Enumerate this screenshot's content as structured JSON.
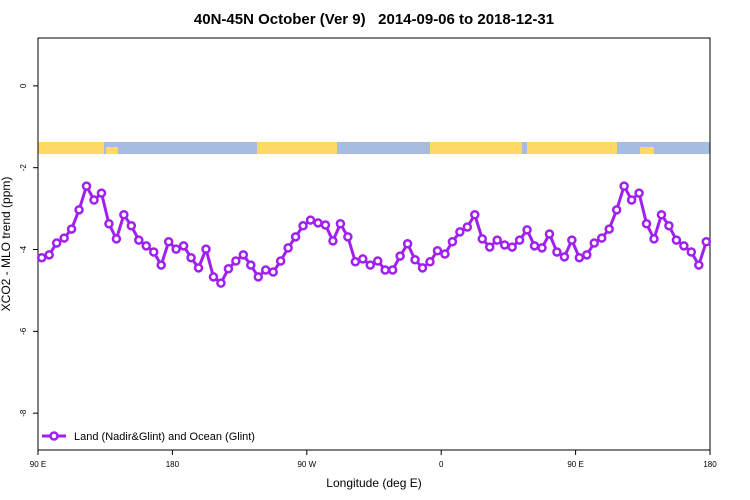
{
  "chart_data": {
    "type": "line",
    "title": "40N-45N October (Ver 9)   2014-09-06 to 2018-12-31",
    "x_label": "Longitude (deg E)",
    "y_label": "XCO2 - MLO trend (ppm)",
    "x": [
      92.5,
      97.5,
      102.5,
      107.5,
      112.5,
      117.5,
      122.5,
      127.5,
      132.5,
      137.5,
      142.5,
      147.5,
      152.5,
      157.5,
      162.5,
      167.5,
      172.5,
      177.5,
      182.5,
      187.5,
      192.5,
      197.5,
      202.5,
      207.5,
      212.5,
      217.5,
      222.5,
      227.5,
      232.5,
      237.5,
      242.5,
      247.5,
      252.5,
      257.5,
      262.5,
      267.5,
      272.5,
      277.5,
      282.5,
      287.5,
      292.5,
      297.5,
      302.5,
      307.5,
      312.5,
      317.5,
      322.5,
      327.5,
      332.5,
      337.5,
      342.5,
      347.5,
      352.5,
      357.5,
      362.5,
      367.5,
      372.5,
      377.5,
      382.5,
      387.5,
      392.5,
      397.5,
      402.5,
      407.5,
      412.5,
      417.5,
      422.5,
      427.5,
      432.5,
      437.5,
      442.5,
      447.5,
      452.5,
      457.5,
      462.5,
      467.5,
      472.5,
      477.5,
      482.5,
      487.5,
      492.5,
      497.5,
      502.5,
      507.5,
      512.5,
      517.5,
      522.5,
      527.5,
      532.5,
      537.5
    ],
    "series": [
      {
        "name": "Land (Nadir&Glint) and Ocean (Glint)",
        "color": "#a020f0",
        "values": [
          -4.2,
          -4.13,
          -3.84,
          -3.72,
          -3.5,
          -3.03,
          -2.45,
          -2.79,
          -2.62,
          -3.37,
          -3.74,
          -3.15,
          -3.42,
          -3.77,
          -3.91,
          -4.06,
          -4.38,
          -3.81,
          -3.99,
          -3.91,
          -4.2,
          -4.45,
          -3.99,
          -4.67,
          -4.82,
          -4.47,
          -4.28,
          -4.13,
          -4.38,
          -4.67,
          -4.5,
          -4.55,
          -4.28,
          -3.96,
          -3.69,
          -3.42,
          -3.28,
          -3.35,
          -3.4,
          -3.79,
          -3.37,
          -3.69,
          -4.3,
          -4.23,
          -4.38,
          -4.28,
          -4.5,
          -4.5,
          -4.16,
          -3.86,
          -4.25,
          -4.45,
          -4.3,
          -4.03,
          -4.11,
          -3.81,
          -3.57,
          -3.45,
          -3.15,
          -3.74,
          -3.94,
          -3.77,
          -3.89,
          -3.94,
          -3.77,
          -3.52,
          -3.91,
          -3.96,
          -3.62,
          -4.06,
          -4.18,
          -3.77,
          -4.2,
          -4.13,
          -3.84,
          -3.72,
          -3.5,
          -3.03,
          -2.45,
          -2.79,
          -2.62,
          -3.37,
          -3.74,
          -3.15,
          -3.42,
          -3.77,
          -3.91,
          -4.06,
          -4.38,
          -3.81
        ]
      }
    ],
    "xlim": [
      90,
      540
    ],
    "xticks": [
      {
        "value": 90,
        "label": "90 E"
      },
      180,
      {
        "value": 270,
        "label": "90 W"
      },
      {
        "value": 360,
        "label": "0"
      },
      {
        "value": 450,
        "label": "90 E"
      },
      180
    ],
    "ylim": [
      -8.9,
      1.17
    ],
    "yticks": [
      0,
      -2,
      -4,
      -6,
      -8
    ],
    "legend": "bottomleft"
  }
}
